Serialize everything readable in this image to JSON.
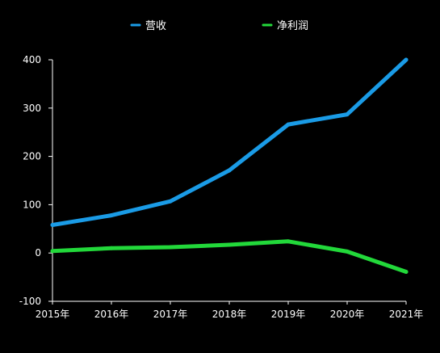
{
  "chart_data": {
    "type": "line",
    "categories": [
      "2015年",
      "2016年",
      "2017年",
      "2018年",
      "2019年",
      "2020年",
      "2021年"
    ],
    "series": [
      {
        "name": "营收",
        "color": "#1a9be6",
        "values": [
          58,
          78,
          107,
          171,
          266,
          287,
          400
        ]
      },
      {
        "name": "净利润",
        "color": "#22d83a",
        "values": [
          4,
          10,
          12,
          17,
          24,
          3,
          -39
        ]
      }
    ],
    "yticks": [
      "400",
      "300",
      "200",
      "100",
      "0",
      "-100"
    ],
    "ylim": [
      -100,
      400
    ],
    "legend_position": "top-center",
    "grid": false,
    "background": "#000000",
    "axis_color": "#ffffff"
  }
}
